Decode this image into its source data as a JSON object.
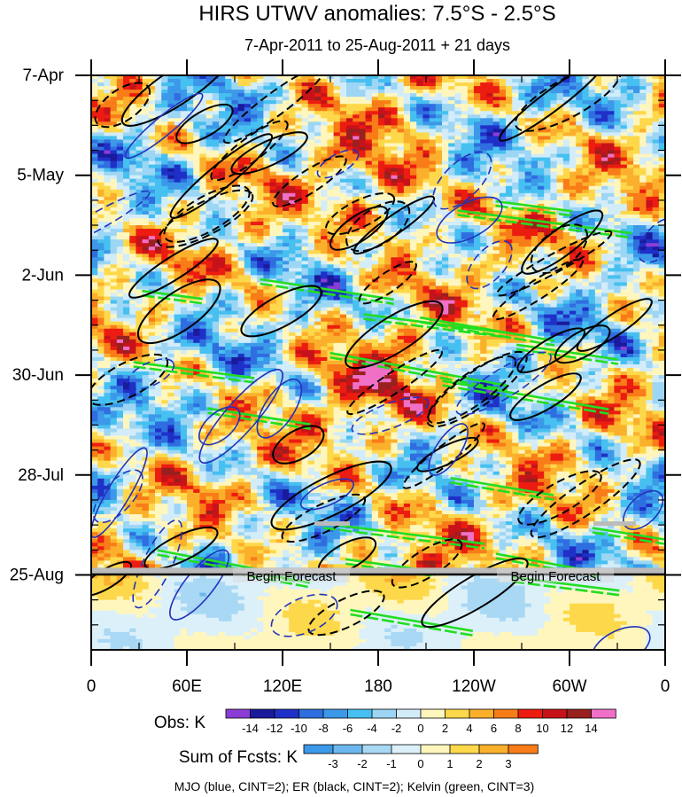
{
  "chart_data": {
    "type": "heatmap",
    "title": "HIRS UTWV anomalies: 7.5°S - 2.5°S",
    "subtitle": "7-Apr-2011 to 25-Aug-2011 + 21 days",
    "x_axis": {
      "ticks": [
        {
          "label": "0",
          "lon": 0
        },
        {
          "label": "60E",
          "lon": 60
        },
        {
          "label": "120E",
          "lon": 120
        },
        {
          "label": "180",
          "lon": 180
        },
        {
          "label": "120W",
          "lon": 240
        },
        {
          "label": "60W",
          "lon": 300
        },
        {
          "label": "0",
          "lon": 360
        }
      ],
      "range": [
        0,
        360
      ]
    },
    "y_axis": {
      "ticks": [
        {
          "label": "7-Apr",
          "day": 0
        },
        {
          "label": "5-May",
          "day": 28
        },
        {
          "label": "2-Jun",
          "day": 56
        },
        {
          "label": "30-Jun",
          "day": 84
        },
        {
          "label": "28-Jul",
          "day": 112
        },
        {
          "label": "25-Aug",
          "day": 140
        }
      ],
      "range": [
        0,
        161
      ],
      "forecast_start_day": 140
    },
    "annotations": [
      "Begin Forecast",
      "Begin Forecast"
    ],
    "obs_colorbar": {
      "label": "Obs: K",
      "levels": [
        "-14",
        "-12",
        "-10",
        "-8",
        "-6",
        "-4",
        "-2",
        "0",
        "2",
        "4",
        "6",
        "8",
        "10",
        "12",
        "14"
      ],
      "colors": [
        "#8c3cd6",
        "#1a1a9c",
        "#1f30c8",
        "#2f6ee0",
        "#3c98e8",
        "#46c0f0",
        "#9cd6f4",
        "#d2ecfa",
        "#fff6be",
        "#fdd84a",
        "#fbb02c",
        "#f87c18",
        "#ec1c10",
        "#c8121a",
        "#98201e",
        "#f070c8"
      ]
    },
    "fcst_colorbar": {
      "label": "Sum of Fcsts: K",
      "levels": [
        "-3",
        "-2",
        "-1",
        "0",
        "1",
        "2",
        "3"
      ],
      "colors": [
        "#3c98e8",
        "#6cb8ee",
        "#a8d8f4",
        "#dcf0fa",
        "#fff6be",
        "#fdd84a",
        "#fbb02c",
        "#f87c18"
      ]
    },
    "legend_text": "MJO (blue, CINT=2); ER (black, CINT=2); Kelvin (green, CINT=3)",
    "contour_colors": {
      "mjo": "#2233bb",
      "er": "#000000",
      "kelvin": "#22dd22",
      "missing": "#bbbbbb"
    }
  }
}
